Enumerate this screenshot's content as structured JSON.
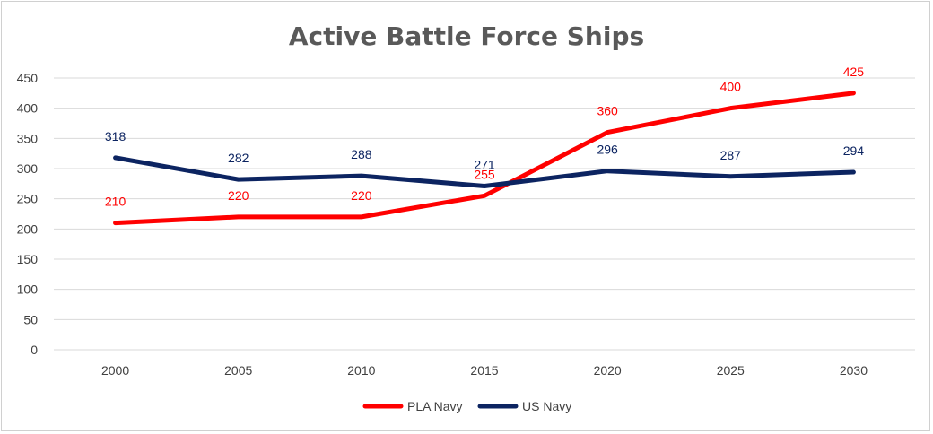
{
  "chart_data": {
    "type": "line",
    "title": "Active Battle Force Ships",
    "xlabel": "",
    "ylabel": "",
    "categories": [
      "2000",
      "2005",
      "2010",
      "2015",
      "2020",
      "2025",
      "2030"
    ],
    "ylim": [
      0,
      450
    ],
    "yticks": [
      "0",
      "50",
      "100",
      "150",
      "200",
      "250",
      "300",
      "350",
      "400",
      "450"
    ],
    "grid": true,
    "legend_position": "bottom",
    "series": [
      {
        "name": "PLA Navy",
        "color": "#ff0000",
        "values": [
          210,
          220,
          220,
          255,
          360,
          400,
          425
        ],
        "labels": [
          "210",
          "220",
          "220",
          "255",
          "360",
          "400",
          "425"
        ]
      },
      {
        "name": "US Navy",
        "color": "#0c2461",
        "values": [
          318,
          282,
          288,
          271,
          296,
          287,
          294
        ],
        "labels": [
          "318",
          "282",
          "288",
          "271",
          "296",
          "287",
          "294"
        ]
      }
    ]
  }
}
